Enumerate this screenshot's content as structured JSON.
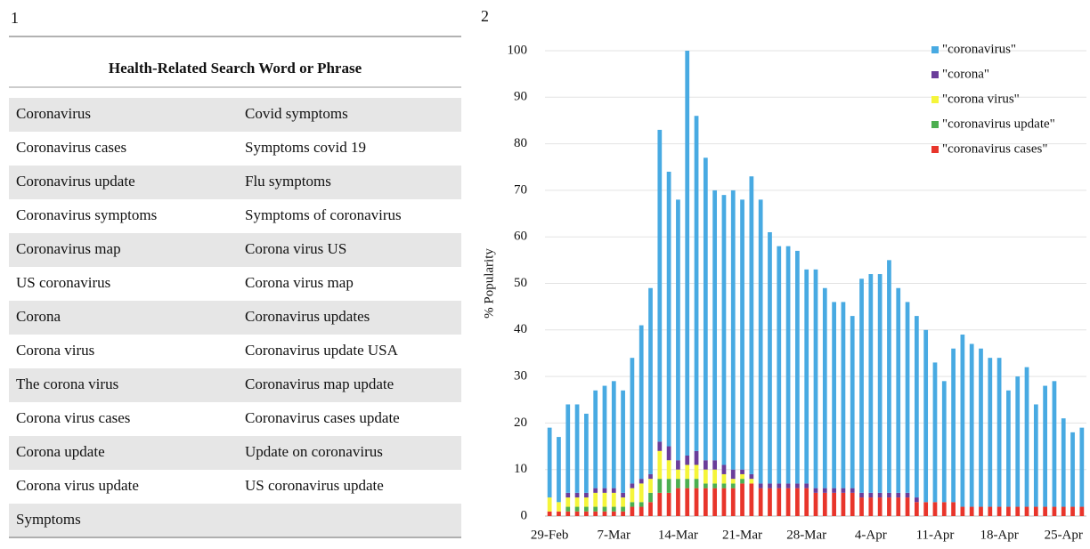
{
  "panel_labels": [
    "1",
    "2"
  ],
  "table": {
    "header": "Health-Related Search Word or Phrase",
    "rows": [
      [
        "Coronavirus",
        "Covid symptoms"
      ],
      [
        "Coronavirus cases",
        "Symptoms covid 19"
      ],
      [
        "Coronavirus update",
        "Flu symptoms"
      ],
      [
        "Coronavirus symptoms",
        "Symptoms of coronavirus"
      ],
      [
        "Coronavirus map",
        "Corona virus US"
      ],
      [
        "US coronavirus",
        "Corona virus map"
      ],
      [
        "Corona",
        "Coronavirus updates"
      ],
      [
        "Corona virus",
        "Coronavirus update USA"
      ],
      [
        "The corona virus",
        "Coronavirus map update"
      ],
      [
        "Corona virus cases",
        "Coronavirus cases update"
      ],
      [
        "Corona update",
        "Update on coronavirus"
      ],
      [
        "Corona virus update",
        "US coronavirus update"
      ],
      [
        "Symptoms"
      ]
    ]
  },
  "chart_data": {
    "type": "stacked_bar",
    "y_label": "% Popularity",
    "categories": [
      "29-Feb",
      null,
      null,
      null,
      null,
      null,
      null,
      "7-Mar",
      null,
      null,
      null,
      null,
      null,
      null,
      "14-Mar",
      null,
      null,
      null,
      null,
      null,
      null,
      "21-Mar",
      null,
      null,
      null,
      null,
      null,
      null,
      "28-Mar",
      null,
      null,
      null,
      null,
      null,
      null,
      "4-Apr",
      null,
      null,
      null,
      null,
      null,
      null,
      "11-Apr",
      null,
      null,
      null,
      null,
      null,
      null,
      "18-Apr",
      null,
      null,
      null,
      null,
      null,
      null,
      "25-Apr",
      null,
      null
    ],
    "series": [
      {
        "name": "\"coronavirus\"",
        "color": "#48aae2",
        "values": [
          15,
          14,
          19,
          19,
          17,
          21,
          22,
          23,
          22,
          27,
          33,
          40,
          67,
          59,
          56,
          87,
          72,
          65,
          58,
          58,
          60,
          58,
          64,
          61,
          54,
          51,
          51,
          50,
          46,
          47,
          43,
          40,
          40,
          37,
          46,
          47,
          47,
          50,
          44,
          41,
          39,
          37,
          30,
          26,
          33,
          37,
          35,
          34,
          32,
          32,
          25,
          28,
          30,
          22,
          26,
          27,
          19,
          16,
          17
        ]
      },
      {
        "name": "\"corona\"",
        "color": "#6a3d9a",
        "values": [
          0,
          0,
          1,
          1,
          1,
          1,
          1,
          1,
          1,
          1,
          1,
          1,
          2,
          3,
          2,
          2,
          3,
          2,
          2,
          2,
          2,
          1,
          1,
          1,
          1,
          1,
          1,
          1,
          1,
          1,
          1,
          1,
          1,
          1,
          1,
          1,
          1,
          1,
          1,
          1,
          1,
          0,
          0,
          0,
          0,
          0,
          0,
          0,
          0,
          0,
          0,
          0,
          0,
          0,
          0,
          0,
          0,
          0,
          0
        ]
      },
      {
        "name": "\"corona virus\"",
        "color": "#f5f53a",
        "values": [
          3,
          2,
          2,
          2,
          2,
          3,
          3,
          3,
          2,
          3,
          4,
          3,
          6,
          4,
          2,
          3,
          3,
          3,
          3,
          2,
          1,
          1,
          1,
          0,
          0,
          0,
          0,
          0,
          0,
          0,
          0,
          0,
          0,
          0,
          0,
          0,
          0,
          0,
          0,
          0,
          0,
          0,
          0,
          0,
          0,
          0,
          0,
          0,
          0,
          0,
          0,
          0,
          0,
          0,
          0,
          0,
          0,
          0,
          0
        ]
      },
      {
        "name": "\"coronavirus update\"",
        "color": "#4caf50",
        "values": [
          0,
          0,
          1,
          1,
          1,
          1,
          1,
          1,
          1,
          1,
          1,
          2,
          3,
          3,
          2,
          2,
          2,
          1,
          1,
          1,
          1,
          1,
          0,
          0,
          0,
          0,
          0,
          0,
          0,
          0,
          0,
          0,
          0,
          0,
          0,
          0,
          0,
          0,
          0,
          0,
          0,
          0,
          0,
          0,
          0,
          0,
          0,
          0,
          0,
          0,
          0,
          0,
          0,
          0,
          0,
          0,
          0,
          0,
          0
        ]
      },
      {
        "name": "\"coronavirus cases\"",
        "color": "#e8352b",
        "values": [
          1,
          1,
          1,
          1,
          1,
          1,
          1,
          1,
          1,
          2,
          2,
          3,
          5,
          5,
          6,
          6,
          6,
          6,
          6,
          6,
          6,
          7,
          7,
          6,
          6,
          6,
          6,
          6,
          6,
          5,
          5,
          5,
          5,
          5,
          4,
          4,
          4,
          4,
          4,
          4,
          3,
          3,
          3,
          3,
          3,
          2,
          2,
          2,
          2,
          2,
          2,
          2,
          2,
          2,
          2,
          2,
          2,
          2,
          2
        ]
      }
    ],
    "ylim": [
      0,
      100
    ],
    "yticks": [
      0,
      10,
      20,
      30,
      40,
      50,
      60,
      70,
      80,
      90,
      100
    ],
    "grid": true,
    "legend": "upper right"
  }
}
